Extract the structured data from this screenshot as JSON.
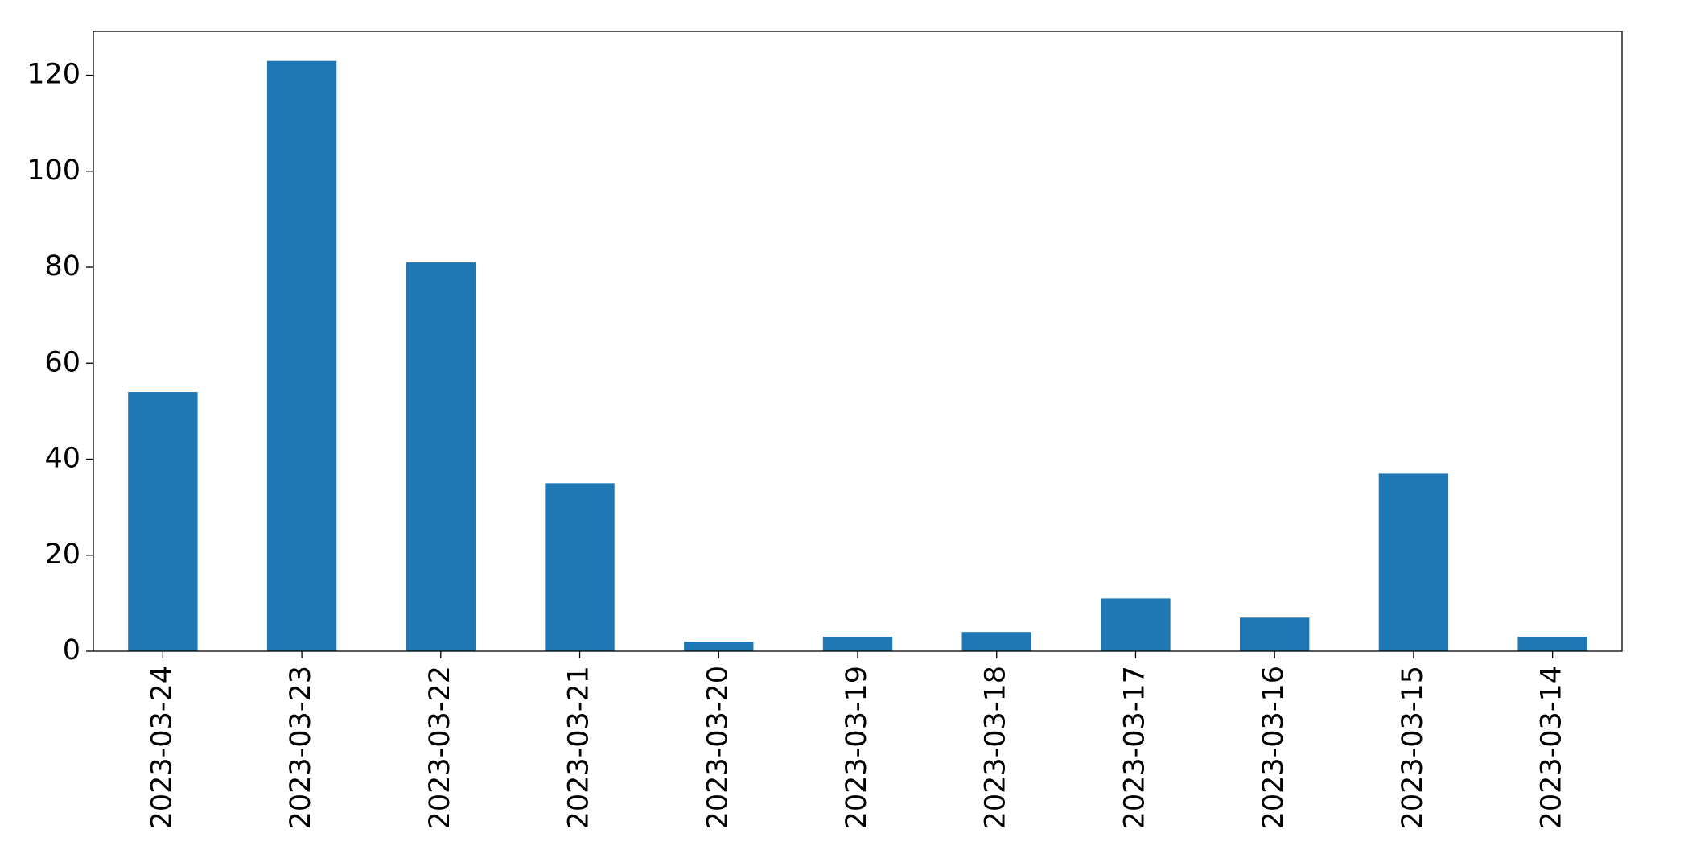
{
  "chart_data": {
    "type": "bar",
    "categories": [
      "2023-03-24",
      "2023-03-23",
      "2023-03-22",
      "2023-03-21",
      "2023-03-20",
      "2023-03-19",
      "2023-03-18",
      "2023-03-17",
      "2023-03-16",
      "2023-03-15",
      "2023-03-14"
    ],
    "values": [
      54,
      123,
      81,
      35,
      2,
      3,
      4,
      11,
      7,
      37,
      3
    ],
    "color": "#1f77b4",
    "ylim": [
      0,
      129.15
    ],
    "yticks": [
      0,
      20,
      40,
      60,
      80,
      100,
      120
    ],
    "grid": false
  }
}
